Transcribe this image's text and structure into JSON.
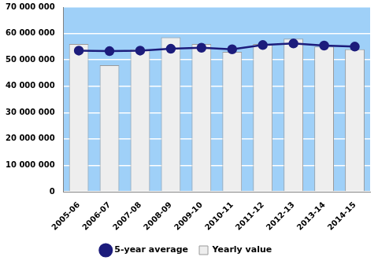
{
  "chart_data": {
    "type": "bar",
    "categories": [
      "2005-06",
      "2006-07",
      "2007-08",
      "2008-09",
      "2009-10",
      "2010-11",
      "2011-12",
      "2012-13",
      "2013-14",
      "2014-15"
    ],
    "series": [
      {
        "name": "Yearly value",
        "type": "bar",
        "color": "#eeeeee",
        "values": [
          56000000,
          48000000,
          54000000,
          58500000,
          56000000,
          53000000,
          56000000,
          58000000,
          55000000,
          54000000
        ]
      },
      {
        "name": "5-year average",
        "type": "line",
        "color": "#1c1c7c",
        "marker": "circle",
        "values": [
          53500000,
          53300000,
          53500000,
          54200000,
          54600000,
          54000000,
          55600000,
          56200000,
          55400000,
          55000000
        ]
      }
    ],
    "ylim": [
      0,
      70000000
    ],
    "yticks": [
      0,
      {
        "value": 10000000,
        "label": "10 000 000"
      },
      {
        "value": 20000000,
        "label": "20 000 000"
      },
      {
        "value": 30000000,
        "label": "30 000 000"
      },
      {
        "value": 40000000,
        "label": "40 000 000"
      },
      {
        "value": 50000000,
        "label": "50 000 000"
      },
      {
        "value": 60000000,
        "label": "60 000 000"
      },
      {
        "value": 70000000,
        "label": "70 000 000"
      }
    ],
    "grid": true,
    "legend": "bottom"
  }
}
